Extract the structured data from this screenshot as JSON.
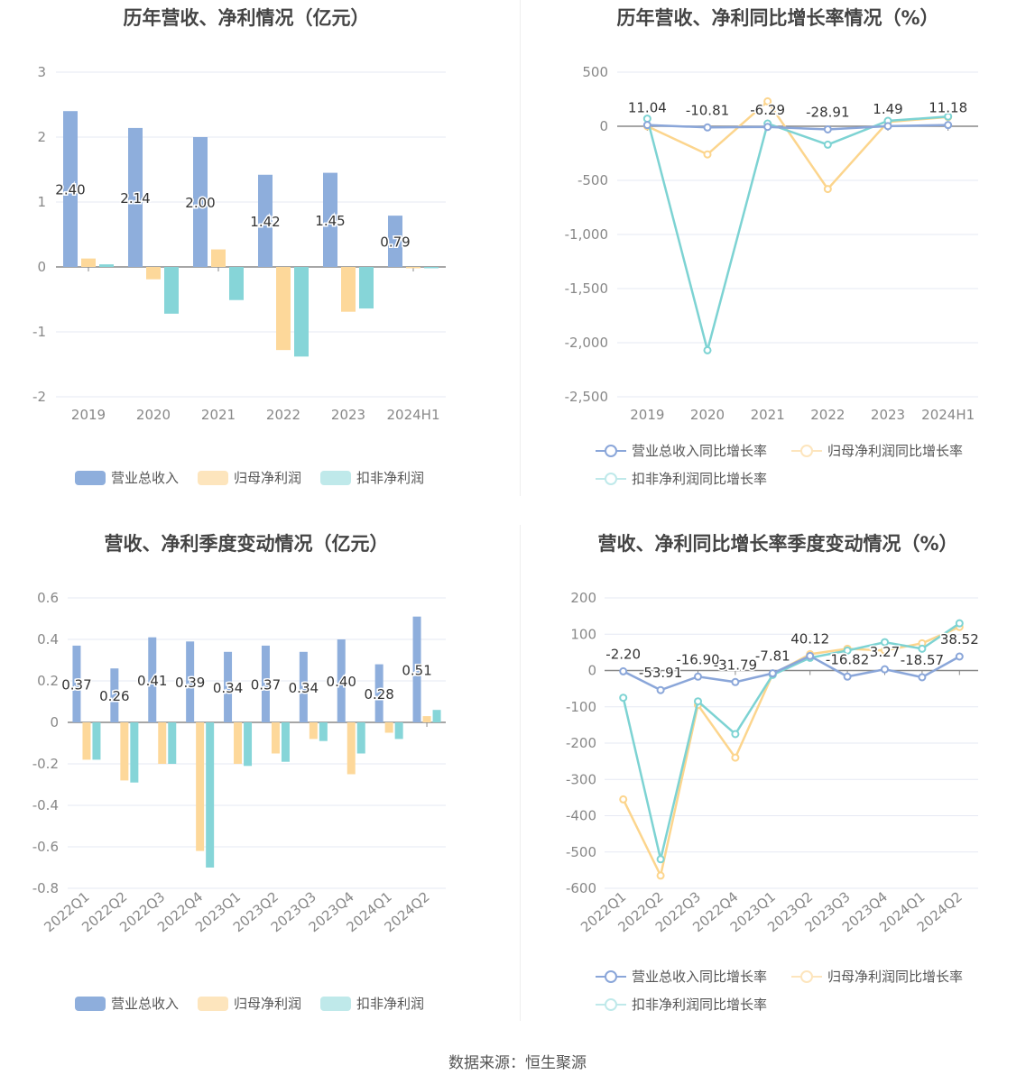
{
  "colors": {
    "revenue": "#8eaedc",
    "net_profit": "#fdd89a",
    "deducted_profit": "#86d5d8",
    "line_revenue": "#8aa6d9",
    "line_net": "#fcd58d",
    "line_deducted": "#7dd3d3"
  },
  "chart_data": [
    {
      "type": "bar",
      "title": "历年营收、净利情况（亿元）",
      "categories": [
        "2019",
        "2020",
        "2021",
        "2022",
        "2023",
        "2024H1"
      ],
      "series": [
        {
          "name": "营业总收入",
          "values": [
            2.4,
            2.14,
            2.0,
            1.42,
            1.45,
            0.79
          ],
          "labels": [
            "2.40",
            "2.14",
            "2.00",
            "1.42",
            "1.45",
            "0.79"
          ]
        },
        {
          "name": "归母净利润",
          "values": [
            0.13,
            -0.19,
            0.27,
            -1.28,
            -0.69,
            -0.02
          ]
        },
        {
          "name": "扣非净利润",
          "values": [
            0.04,
            -0.72,
            -0.51,
            -1.38,
            -0.64,
            -0.02
          ]
        }
      ],
      "ylim": [
        -2,
        3
      ],
      "yticks": [
        3,
        2,
        1,
        0,
        -1,
        -2
      ],
      "ytick_labels": [
        "3",
        "2",
        "1",
        "0",
        "-1",
        "-2"
      ],
      "grid": true,
      "legend": "bottom"
    },
    {
      "type": "line",
      "title": "历年营收、净利同比增长率情况（%）",
      "categories": [
        "2019",
        "2020",
        "2021",
        "2022",
        "2023",
        "2024H1"
      ],
      "series": [
        {
          "name": "营业总收入同比增长率",
          "values": [
            11.04,
            -10.81,
            -6.29,
            -28.91,
            1.49,
            11.18
          ],
          "labels": [
            "11.04",
            "-10.81",
            "-6.29",
            "-28.91",
            "1.49",
            "11.18"
          ]
        },
        {
          "name": "归母净利润同比增长率",
          "values": [
            0,
            -260,
            230,
            -580,
            40,
            85
          ]
        },
        {
          "name": "扣非净利润同比增长率",
          "values": [
            70,
            -2070,
            25,
            -170,
            50,
            90
          ]
        }
      ],
      "ylim": [
        -2500,
        500
      ],
      "yticks": [
        500,
        0,
        -500,
        -1000,
        -1500,
        -2000,
        -2500
      ],
      "ytick_labels": [
        "500",
        "0",
        "-500",
        "-1,000",
        "-1,500",
        "-2,000",
        "-2,500"
      ],
      "grid": true,
      "legend": "bottom"
    },
    {
      "type": "bar",
      "title": "营收、净利季度变动情况（亿元）",
      "categories": [
        "2022Q1",
        "2022Q2",
        "2022Q3",
        "2022Q4",
        "2023Q1",
        "2023Q2",
        "2023Q3",
        "2023Q4",
        "2024Q1",
        "2024Q2"
      ],
      "series": [
        {
          "name": "营业总收入",
          "values": [
            0.37,
            0.26,
            0.41,
            0.39,
            0.34,
            0.37,
            0.34,
            0.4,
            0.28,
            0.51
          ],
          "labels": [
            "0.37",
            "0.26",
            "0.41",
            "0.39",
            "0.34",
            "0.37",
            "0.34",
            "0.40",
            "0.28",
            "0.51"
          ]
        },
        {
          "name": "归母净利润",
          "values": [
            -0.18,
            -0.28,
            -0.2,
            -0.62,
            -0.2,
            -0.15,
            -0.08,
            -0.25,
            -0.05,
            0.03
          ]
        },
        {
          "name": "扣非净利润",
          "values": [
            -0.18,
            -0.29,
            -0.2,
            -0.7,
            -0.21,
            -0.19,
            -0.09,
            -0.15,
            -0.08,
            0.06
          ]
        }
      ],
      "ylim": [
        -0.8,
        0.6
      ],
      "yticks": [
        0.6,
        0.4,
        0.2,
        0,
        -0.2,
        -0.4,
        -0.6,
        -0.8
      ],
      "ytick_labels": [
        "0.6",
        "0.4",
        "0.2",
        "0",
        "-0.2",
        "-0.4",
        "-0.6",
        "-0.8"
      ],
      "grid": true,
      "legend": "bottom"
    },
    {
      "type": "line",
      "title": "营收、净利同比增长率季度变动情况（%）",
      "categories": [
        "2022Q1",
        "2022Q2",
        "2022Q3",
        "2022Q4",
        "2023Q1",
        "2023Q2",
        "2023Q3",
        "2023Q4",
        "2024Q1",
        "2024Q2"
      ],
      "series": [
        {
          "name": "营业总收入同比增长率",
          "values": [
            -2.2,
            -53.91,
            -16.9,
            -31.79,
            -7.81,
            40.12,
            -16.82,
            3.27,
            -18.57,
            38.52
          ],
          "labels": [
            "-2.20",
            "-53.91",
            "-16.90",
            "-31.79",
            "-7.81",
            "40.12",
            "-16.82",
            "3.27",
            "-18.57",
            "38.52"
          ]
        },
        {
          "name": "归母净利润同比增长率",
          "values": [
            -355,
            -565,
            -95,
            -240,
            -10,
            45,
            60,
            55,
            75,
            120
          ]
        },
        {
          "name": "扣非净利润同比增长率",
          "values": [
            -75,
            -520,
            -85,
            -175,
            -12,
            35,
            55,
            78,
            60,
            130
          ]
        }
      ],
      "ylim": [
        -600,
        200
      ],
      "yticks": [
        200,
        100,
        0,
        -100,
        -200,
        -300,
        -400,
        -500,
        -600
      ],
      "ytick_labels": [
        "200",
        "100",
        "0",
        "-100",
        "-200",
        "-300",
        "-400",
        "-500",
        "-600"
      ],
      "grid": true,
      "legend": "bottom"
    }
  ],
  "footer": "数据来源：恒生聚源"
}
